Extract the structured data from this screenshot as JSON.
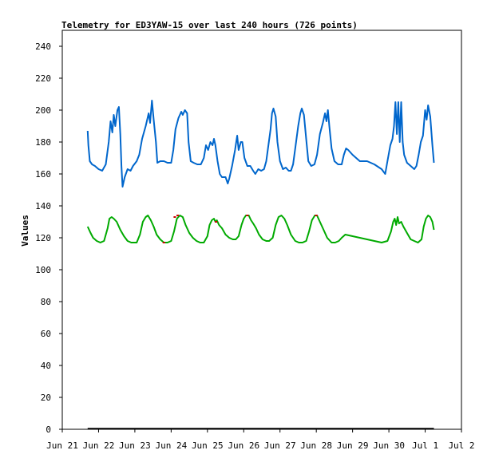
{
  "chart_data": {
    "type": "line",
    "title": "Telemetry for ED3YAW-15 over last 240 hours (726 points)",
    "xlabel": "",
    "ylabel": "Values",
    "ylim": [
      0,
      250
    ],
    "yticks": [
      0,
      20,
      40,
      60,
      80,
      100,
      120,
      140,
      160,
      180,
      200,
      220,
      240
    ],
    "xlim": [
      0,
      11
    ],
    "xticks": [
      {
        "x": 0,
        "label": "Jun 21"
      },
      {
        "x": 1,
        "label": "Jun 22"
      },
      {
        "x": 2,
        "label": "Jun 23"
      },
      {
        "x": 3,
        "label": "Jun 24"
      },
      {
        "x": 4,
        "label": "Jun 25"
      },
      {
        "x": 5,
        "label": "Jun 26"
      },
      {
        "x": 6,
        "label": "Jun 27"
      },
      {
        "x": 7,
        "label": "Jun 28"
      },
      {
        "x": 8,
        "label": "Jun 29"
      },
      {
        "x": 9,
        "label": "Jun 30"
      },
      {
        "x": 10,
        "label": "Jul 1"
      },
      {
        "x": 11,
        "label": "Jul 2"
      }
    ],
    "grid": false,
    "series": [
      {
        "color": "#0066cc",
        "points": [
          [
            0.7,
            187
          ],
          [
            0.72,
            178
          ],
          [
            0.76,
            168
          ],
          [
            0.82,
            166
          ],
          [
            0.9,
            165
          ],
          [
            1.0,
            163
          ],
          [
            1.1,
            162
          ],
          [
            1.2,
            166
          ],
          [
            1.28,
            180
          ],
          [
            1.33,
            193
          ],
          [
            1.38,
            186
          ],
          [
            1.42,
            197
          ],
          [
            1.46,
            190
          ],
          [
            1.52,
            200
          ],
          [
            1.56,
            202
          ],
          [
            1.6,
            185
          ],
          [
            1.63,
            165
          ],
          [
            1.66,
            152
          ],
          [
            1.72,
            158
          ],
          [
            1.8,
            163
          ],
          [
            1.88,
            162
          ],
          [
            1.95,
            165
          ],
          [
            2.05,
            168
          ],
          [
            2.12,
            172
          ],
          [
            2.2,
            182
          ],
          [
            2.3,
            190
          ],
          [
            2.38,
            198
          ],
          [
            2.42,
            192
          ],
          [
            2.47,
            206
          ],
          [
            2.52,
            194
          ],
          [
            2.58,
            180
          ],
          [
            2.62,
            167
          ],
          [
            2.7,
            168
          ],
          [
            2.8,
            168
          ],
          [
            2.9,
            167
          ],
          [
            3.0,
            167
          ],
          [
            3.06,
            175
          ],
          [
            3.12,
            188
          ],
          [
            3.2,
            195
          ],
          [
            3.28,
            199
          ],
          [
            3.32,
            197
          ],
          [
            3.38,
            200
          ],
          [
            3.44,
            198
          ],
          [
            3.48,
            180
          ],
          [
            3.54,
            168
          ],
          [
            3.62,
            167
          ],
          [
            3.72,
            166
          ],
          [
            3.82,
            166
          ],
          [
            3.9,
            170
          ],
          [
            3.96,
            178
          ],
          [
            4.02,
            175
          ],
          [
            4.08,
            180
          ],
          [
            4.14,
            178
          ],
          [
            4.18,
            182
          ],
          [
            4.22,
            178
          ],
          [
            4.28,
            168
          ],
          [
            4.34,
            160
          ],
          [
            4.4,
            158
          ],
          [
            4.5,
            158
          ],
          [
            4.56,
            154
          ],
          [
            4.6,
            157
          ],
          [
            4.68,
            165
          ],
          [
            4.76,
            175
          ],
          [
            4.82,
            184
          ],
          [
            4.86,
            175
          ],
          [
            4.92,
            180
          ],
          [
            4.96,
            180
          ],
          [
            5.02,
            170
          ],
          [
            5.1,
            165
          ],
          [
            5.18,
            165
          ],
          [
            5.26,
            162
          ],
          [
            5.32,
            160
          ],
          [
            5.4,
            163
          ],
          [
            5.48,
            162
          ],
          [
            5.56,
            163
          ],
          [
            5.62,
            168
          ],
          [
            5.68,
            178
          ],
          [
            5.74,
            188
          ],
          [
            5.78,
            198
          ],
          [
            5.82,
            201
          ],
          [
            5.88,
            196
          ],
          [
            5.93,
            180
          ],
          [
            6.0,
            168
          ],
          [
            6.08,
            163
          ],
          [
            6.16,
            164
          ],
          [
            6.24,
            162
          ],
          [
            6.3,
            162
          ],
          [
            6.36,
            166
          ],
          [
            6.42,
            176
          ],
          [
            6.5,
            190
          ],
          [
            6.56,
            198
          ],
          [
            6.6,
            201
          ],
          [
            6.66,
            197
          ],
          [
            6.72,
            182
          ],
          [
            6.78,
            168
          ],
          [
            6.86,
            165
          ],
          [
            6.95,
            166
          ],
          [
            7.02,
            172
          ],
          [
            7.1,
            185
          ],
          [
            7.18,
            192
          ],
          [
            7.24,
            198
          ],
          [
            7.28,
            193
          ],
          [
            7.32,
            200
          ],
          [
            7.36,
            190
          ],
          [
            7.42,
            176
          ],
          [
            7.5,
            168
          ],
          [
            7.6,
            166
          ],
          [
            7.7,
            166
          ],
          [
            7.76,
            172
          ],
          [
            7.82,
            176
          ],
          [
            7.88,
            175
          ],
          [
            8.0,
            172
          ],
          [
            8.2,
            168
          ],
          [
            8.4,
            168
          ],
          [
            8.6,
            166
          ],
          [
            8.8,
            163
          ],
          [
            8.9,
            160
          ],
          [
            8.96,
            168
          ],
          [
            9.04,
            178
          ],
          [
            9.1,
            182
          ],
          [
            9.14,
            190
          ],
          [
            9.18,
            205
          ],
          [
            9.22,
            185
          ],
          [
            9.26,
            205
          ],
          [
            9.3,
            180
          ],
          [
            9.34,
            205
          ],
          [
            9.38,
            180
          ],
          [
            9.42,
            172
          ],
          [
            9.5,
            167
          ],
          [
            9.6,
            165
          ],
          [
            9.7,
            163
          ],
          [
            9.76,
            165
          ],
          [
            9.82,
            172
          ],
          [
            9.88,
            180
          ],
          [
            9.94,
            184
          ],
          [
            10.0,
            200
          ],
          [
            10.04,
            194
          ],
          [
            10.08,
            203
          ],
          [
            10.14,
            196
          ],
          [
            10.2,
            178
          ],
          [
            10.24,
            167
          ]
        ]
      },
      {
        "color": "#00aa00",
        "points": [
          [
            0.7,
            127
          ],
          [
            0.78,
            123
          ],
          [
            0.85,
            120
          ],
          [
            0.95,
            118
          ],
          [
            1.05,
            117
          ],
          [
            1.15,
            118
          ],
          [
            1.25,
            126
          ],
          [
            1.3,
            132
          ],
          [
            1.36,
            133
          ],
          [
            1.42,
            132
          ],
          [
            1.5,
            130
          ],
          [
            1.6,
            125
          ],
          [
            1.7,
            121
          ],
          [
            1.8,
            118
          ],
          [
            1.9,
            117
          ],
          [
            2.05,
            117
          ],
          [
            2.14,
            122
          ],
          [
            2.22,
            130
          ],
          [
            2.3,
            133
          ],
          [
            2.36,
            134
          ],
          [
            2.44,
            131
          ],
          [
            2.52,
            127
          ],
          [
            2.6,
            122
          ],
          [
            2.7,
            119
          ],
          [
            2.8,
            117
          ],
          [
            2.9,
            117
          ],
          [
            3.0,
            118
          ],
          [
            3.08,
            124
          ],
          [
            3.16,
            132
          ],
          [
            3.24,
            134
          ],
          [
            3.32,
            133
          ],
          [
            3.4,
            128
          ],
          [
            3.5,
            123
          ],
          [
            3.6,
            120
          ],
          [
            3.7,
            118
          ],
          [
            3.8,
            117
          ],
          [
            3.9,
            117
          ],
          [
            4.0,
            121
          ],
          [
            4.06,
            128
          ],
          [
            4.12,
            131
          ],
          [
            4.18,
            132
          ],
          [
            4.22,
            130
          ],
          [
            4.26,
            131
          ],
          [
            4.32,
            128
          ],
          [
            4.4,
            126
          ],
          [
            4.5,
            122
          ],
          [
            4.6,
            120
          ],
          [
            4.7,
            119
          ],
          [
            4.78,
            119
          ],
          [
            4.86,
            121
          ],
          [
            4.94,
            128
          ],
          [
            5.0,
            132
          ],
          [
            5.06,
            134
          ],
          [
            5.14,
            134
          ],
          [
            5.2,
            131
          ],
          [
            5.26,
            129
          ],
          [
            5.34,
            126
          ],
          [
            5.42,
            122
          ],
          [
            5.52,
            119
          ],
          [
            5.62,
            118
          ],
          [
            5.7,
            118
          ],
          [
            5.8,
            120
          ],
          [
            5.88,
            128
          ],
          [
            5.96,
            133
          ],
          [
            6.04,
            134
          ],
          [
            6.12,
            132
          ],
          [
            6.2,
            128
          ],
          [
            6.3,
            122
          ],
          [
            6.42,
            118
          ],
          [
            6.52,
            117
          ],
          [
            6.62,
            117
          ],
          [
            6.72,
            118
          ],
          [
            6.8,
            124
          ],
          [
            6.88,
            131
          ],
          [
            6.96,
            134
          ],
          [
            7.02,
            134
          ],
          [
            7.1,
            130
          ],
          [
            7.2,
            125
          ],
          [
            7.3,
            120
          ],
          [
            7.42,
            117
          ],
          [
            7.52,
            117
          ],
          [
            7.62,
            118
          ],
          [
            7.7,
            120
          ],
          [
            7.8,
            122
          ],
          [
            8.0,
            121
          ],
          [
            8.2,
            120
          ],
          [
            8.4,
            119
          ],
          [
            8.6,
            118
          ],
          [
            8.8,
            117
          ],
          [
            8.96,
            118
          ],
          [
            9.06,
            124
          ],
          [
            9.12,
            130
          ],
          [
            9.16,
            132
          ],
          [
            9.2,
            128
          ],
          [
            9.24,
            133
          ],
          [
            9.28,
            129
          ],
          [
            9.34,
            130
          ],
          [
            9.4,
            127
          ],
          [
            9.5,
            123
          ],
          [
            9.6,
            119
          ],
          [
            9.7,
            118
          ],
          [
            9.8,
            117
          ],
          [
            9.9,
            119
          ],
          [
            9.96,
            127
          ],
          [
            10.02,
            132
          ],
          [
            10.08,
            134
          ],
          [
            10.14,
            133
          ],
          [
            10.2,
            130
          ],
          [
            10.24,
            125
          ]
        ]
      },
      {
        "color": "#000000",
        "points": [
          [
            0.7,
            0.4
          ],
          [
            10.24,
            0.4
          ]
        ]
      }
    ],
    "markers": [
      {
        "x": 3.1,
        "y": 133,
        "color": "#cc0000"
      },
      {
        "x": 3.18,
        "y": 134,
        "color": "#cc0000"
      },
      {
        "x": 2.8,
        "y": 117,
        "color": "#cc0000"
      },
      {
        "x": 5.1,
        "y": 134,
        "color": "#cc0000"
      },
      {
        "x": 7.0,
        "y": 134,
        "color": "#cc0000"
      },
      {
        "x": 4.24,
        "y": 130,
        "color": "#cc0000"
      }
    ]
  }
}
